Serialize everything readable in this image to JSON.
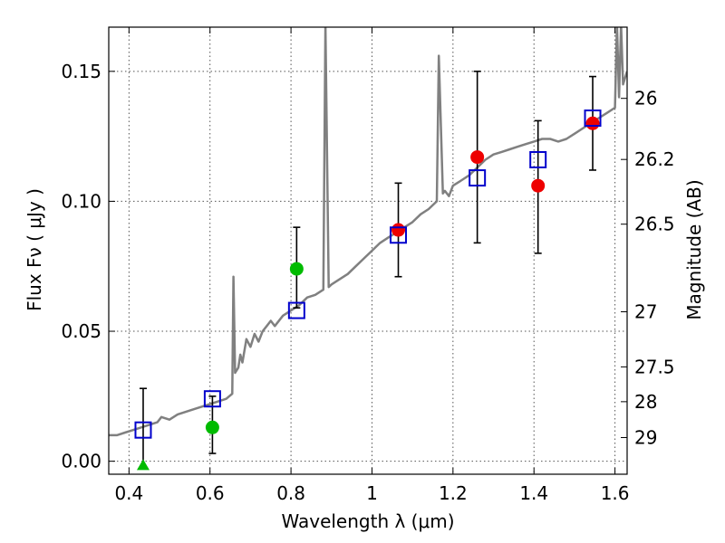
{
  "chart_data": {
    "type": "scatter",
    "xlabel": "Wavelength  λ (μm)",
    "ylabel": "Flux  Fν  ( μJy )",
    "y2label": "Magnitude (AB)",
    "xlim": [
      0.35,
      1.63
    ],
    "ylim": [
      -0.005,
      0.167
    ],
    "grid": true,
    "x_ticks": [
      {
        "v": 0.4,
        "label": "0.4"
      },
      {
        "v": 0.6,
        "label": "0.6"
      },
      {
        "v": 0.8,
        "label": "0.8"
      },
      {
        "v": 1.0,
        "label": "1"
      },
      {
        "v": 1.2,
        "label": "1.2"
      },
      {
        "v": 1.4,
        "label": "1.4"
      },
      {
        "v": 1.6,
        "label": "1.6"
      }
    ],
    "y_ticks": [
      {
        "v": 0.0,
        "label": "0.00"
      },
      {
        "v": 0.05,
        "label": "0.05"
      },
      {
        "v": 0.1,
        "label": "0.10"
      },
      {
        "v": 0.15,
        "label": "0.15"
      }
    ],
    "mag_ticks": [
      {
        "v": 0.1396,
        "label": "26"
      },
      {
        "v": 0.1161,
        "label": "26.2"
      },
      {
        "v": 0.0912,
        "label": "26.5"
      },
      {
        "v": 0.0575,
        "label": "27"
      },
      {
        "v": 0.0363,
        "label": "27.5"
      },
      {
        "v": 0.0229,
        "label": "28"
      },
      {
        "v": 0.0091,
        "label": "29"
      }
    ],
    "colors": {
      "model": "#808080",
      "model_flux": "#0000cc",
      "green": "#00bb00",
      "red": "#ee0000",
      "errorbar": "#000000",
      "grid": "#555555"
    },
    "model_spectrum": [
      [
        0.35,
        0.01
      ],
      [
        0.37,
        0.01
      ],
      [
        0.39,
        0.011
      ],
      [
        0.41,
        0.012
      ],
      [
        0.43,
        0.013
      ],
      [
        0.45,
        0.014
      ],
      [
        0.47,
        0.015
      ],
      [
        0.48,
        0.017
      ],
      [
        0.5,
        0.016
      ],
      [
        0.52,
        0.018
      ],
      [
        0.54,
        0.019
      ],
      [
        0.56,
        0.02
      ],
      [
        0.58,
        0.021
      ],
      [
        0.6,
        0.022
      ],
      [
        0.62,
        0.023
      ],
      [
        0.64,
        0.024
      ],
      [
        0.655,
        0.026
      ],
      [
        0.658,
        0.071
      ],
      [
        0.662,
        0.034
      ],
      [
        0.67,
        0.036
      ],
      [
        0.675,
        0.041
      ],
      [
        0.68,
        0.038
      ],
      [
        0.69,
        0.047
      ],
      [
        0.7,
        0.044
      ],
      [
        0.71,
        0.049
      ],
      [
        0.72,
        0.046
      ],
      [
        0.73,
        0.05
      ],
      [
        0.74,
        0.052
      ],
      [
        0.75,
        0.054
      ],
      [
        0.76,
        0.052
      ],
      [
        0.78,
        0.056
      ],
      [
        0.8,
        0.058
      ],
      [
        0.82,
        0.06
      ],
      [
        0.84,
        0.063
      ],
      [
        0.86,
        0.064
      ],
      [
        0.88,
        0.066
      ],
      [
        0.885,
        0.168
      ],
      [
        0.893,
        0.067
      ],
      [
        0.9,
        0.068
      ],
      [
        0.92,
        0.07
      ],
      [
        0.94,
        0.072
      ],
      [
        0.96,
        0.075
      ],
      [
        0.98,
        0.078
      ],
      [
        1.0,
        0.081
      ],
      [
        1.02,
        0.084
      ],
      [
        1.04,
        0.086
      ],
      [
        1.06,
        0.088
      ],
      [
        1.08,
        0.09
      ],
      [
        1.1,
        0.092
      ],
      [
        1.12,
        0.095
      ],
      [
        1.14,
        0.097
      ],
      [
        1.16,
        0.1
      ],
      [
        1.165,
        0.156
      ],
      [
        1.175,
        0.103
      ],
      [
        1.18,
        0.104
      ],
      [
        1.19,
        0.102
      ],
      [
        1.2,
        0.106
      ],
      [
        1.22,
        0.108
      ],
      [
        1.24,
        0.11
      ],
      [
        1.26,
        0.113
      ],
      [
        1.28,
        0.116
      ],
      [
        1.3,
        0.118
      ],
      [
        1.32,
        0.119
      ],
      [
        1.34,
        0.12
      ],
      [
        1.36,
        0.121
      ],
      [
        1.38,
        0.122
      ],
      [
        1.4,
        0.123
      ],
      [
        1.42,
        0.124
      ],
      [
        1.44,
        0.124
      ],
      [
        1.46,
        0.123
      ],
      [
        1.48,
        0.124
      ],
      [
        1.5,
        0.126
      ],
      [
        1.52,
        0.128
      ],
      [
        1.54,
        0.13
      ],
      [
        1.56,
        0.132
      ],
      [
        1.58,
        0.134
      ],
      [
        1.6,
        0.136
      ],
      [
        1.605,
        0.168
      ],
      [
        1.61,
        0.14
      ],
      [
        1.615,
        0.168
      ],
      [
        1.62,
        0.145
      ],
      [
        1.63,
        0.15
      ]
    ],
    "model_flux_points": [
      {
        "x": 0.435,
        "y": 0.012
      },
      {
        "x": 0.606,
        "y": 0.024
      },
      {
        "x": 0.814,
        "y": 0.058
      },
      {
        "x": 1.065,
        "y": 0.087
      },
      {
        "x": 1.26,
        "y": 0.109
      },
      {
        "x": 1.41,
        "y": 0.116
      },
      {
        "x": 1.545,
        "y": 0.132
      }
    ],
    "green_points": [
      {
        "x": 0.606,
        "y": 0.013
      },
      {
        "x": 0.814,
        "y": 0.074
      }
    ],
    "green_upper_limit": {
      "x": 0.435,
      "y": -0.002
    },
    "red_points": [
      {
        "x": 1.065,
        "y": 0.089
      },
      {
        "x": 1.26,
        "y": 0.117
      },
      {
        "x": 1.41,
        "y": 0.106
      },
      {
        "x": 1.545,
        "y": 0.13
      }
    ],
    "error_bars": [
      {
        "x": 0.435,
        "lo": -0.002,
        "hi": 0.028
      },
      {
        "x": 0.606,
        "lo": 0.003,
        "hi": 0.025
      },
      {
        "x": 0.814,
        "lo": 0.059,
        "hi": 0.09
      },
      {
        "x": 1.065,
        "lo": 0.071,
        "hi": 0.107
      },
      {
        "x": 1.26,
        "lo": 0.084,
        "hi": 0.15
      },
      {
        "x": 1.41,
        "lo": 0.08,
        "hi": 0.131
      },
      {
        "x": 1.545,
        "lo": 0.112,
        "hi": 0.148
      }
    ]
  }
}
